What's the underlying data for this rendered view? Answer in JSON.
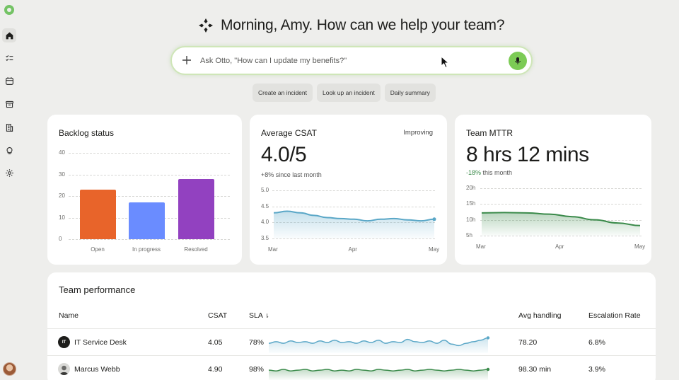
{
  "sidebar": {
    "items": [
      {
        "icon": "home-icon",
        "active": true
      },
      {
        "icon": "checklist-icon",
        "active": false
      },
      {
        "icon": "calendar-icon",
        "active": false
      },
      {
        "icon": "archive-icon",
        "active": false
      },
      {
        "icon": "building-icon",
        "active": false
      },
      {
        "icon": "lightbulb-icon",
        "active": false
      },
      {
        "icon": "gear-icon",
        "active": false
      }
    ]
  },
  "header": {
    "greeting": "Morning, Amy. How can we help your team?"
  },
  "search": {
    "placeholder": "Ask Otto, \"How can I update my benefits?\""
  },
  "chips": [
    "Create an incident",
    "Look up an incident",
    "Daily summary"
  ],
  "backlog": {
    "title": "Backlog status",
    "y_ticks": [
      "40",
      "30",
      "20",
      "10",
      "0"
    ],
    "chart_data": {
      "type": "bar",
      "categories": [
        "Open",
        "In progress",
        "Resolved"
      ],
      "values": [
        23,
        17,
        28
      ],
      "ylim": [
        0,
        40
      ],
      "colors": [
        "#e8642a",
        "#6a8cff",
        "#9241c0"
      ]
    }
  },
  "csat": {
    "title": "Average CSAT",
    "value": "4.0/5",
    "badge": "Improving",
    "delta": "+8% since last month",
    "y_ticks": [
      "5.0",
      "4.5",
      "4.0",
      "3.5"
    ],
    "x_ticks": [
      "Mar",
      "Apr",
      "May"
    ],
    "chart_data": {
      "type": "area",
      "ylim": [
        3.5,
        5.0
      ],
      "values": [
        4.3,
        4.35,
        4.3,
        4.22,
        4.15,
        4.12,
        4.1,
        4.05,
        4.1,
        4.12,
        4.08,
        4.05,
        4.1
      ],
      "color": "#5aa7c7"
    }
  },
  "mttr": {
    "title": "Team MTTR",
    "value": "8 hrs 12 mins",
    "delta_value": "-18%",
    "delta_text": " this month",
    "y_ticks": [
      "20h",
      "15h",
      "10h",
      "5h"
    ],
    "x_ticks": [
      "Mar",
      "Apr",
      "May"
    ],
    "chart_data": {
      "type": "area",
      "ylim": [
        5,
        20
      ],
      "values": [
        12.2,
        12.3,
        12.2,
        11.8,
        11.0,
        10.0,
        9.0,
        8.2
      ],
      "color": "#3a8a4a"
    }
  },
  "team": {
    "title": "Team performance",
    "columns": [
      "Name",
      "CSAT",
      "SLA",
      "Avg handling",
      "Escalation Rate"
    ],
    "rows": [
      {
        "icon_text": "IT",
        "name": "IT Service Desk",
        "csat": "4.05",
        "sla": "78%",
        "avg_handling": "78.20",
        "escalation": "6.8%",
        "spark_color": "#5aa7c7",
        "spark": [
          0.55,
          0.45,
          0.55,
          0.4,
          0.5,
          0.45,
          0.55,
          0.4,
          0.5,
          0.35,
          0.5,
          0.45,
          0.55,
          0.4,
          0.5,
          0.35,
          0.55,
          0.45,
          0.5,
          0.3,
          0.45,
          0.5,
          0.4,
          0.55,
          0.35,
          0.6,
          0.7,
          0.55,
          0.45,
          0.35,
          0.2
        ]
      },
      {
        "icon_text": "",
        "name": "Marcus Webb",
        "csat": "4.90",
        "sla": "98%",
        "avg_handling": "98.30 min",
        "escalation": "3.9%",
        "spark_color": "#3a8a4a",
        "spark": [
          0.55,
          0.6,
          0.5,
          0.6,
          0.55,
          0.5,
          0.6,
          0.55,
          0.5,
          0.6,
          0.55,
          0.6,
          0.5,
          0.55,
          0.6,
          0.5,
          0.55,
          0.6,
          0.55,
          0.5,
          0.6,
          0.55,
          0.5,
          0.55,
          0.6,
          0.55,
          0.5,
          0.55,
          0.6,
          0.55,
          0.5
        ]
      }
    ]
  }
}
